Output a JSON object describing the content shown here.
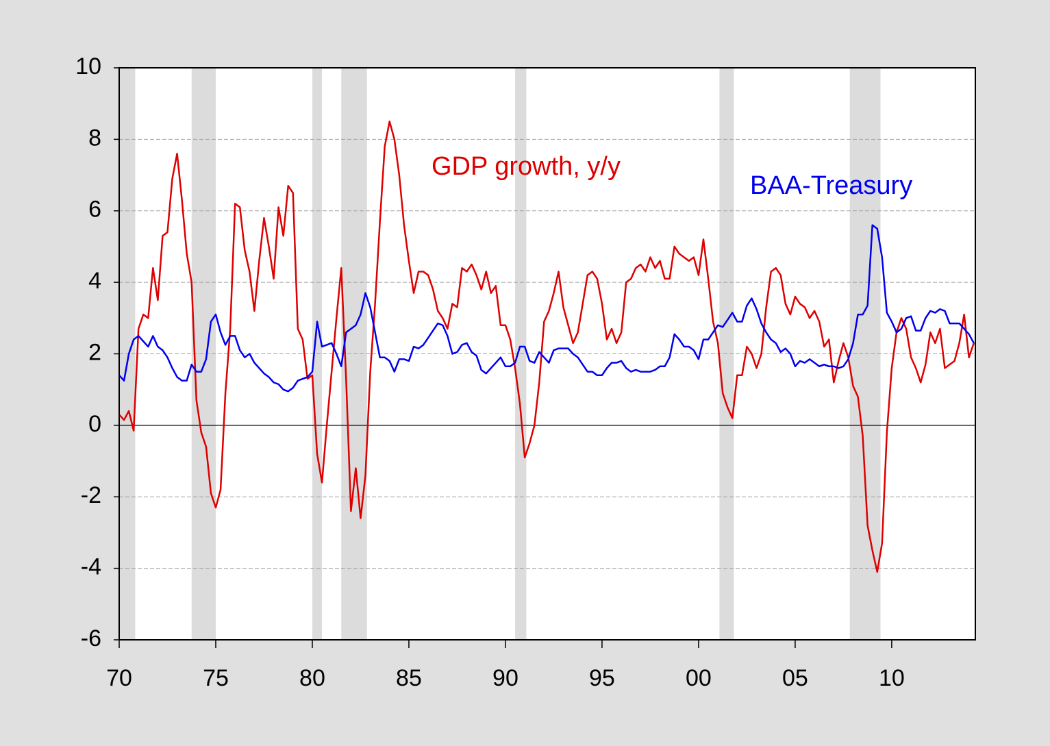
{
  "chart_data": {
    "type": "line",
    "annotations": [
      {
        "text": "GDP growth, y/y",
        "color": "#dd0000"
      },
      {
        "text": "BAA-Treasury",
        "color": "#0000ee"
      }
    ],
    "x": [
      1970,
      1970.25,
      1970.5,
      1970.75,
      1971,
      1971.25,
      1971.5,
      1971.75,
      1972,
      1972.25,
      1972.5,
      1972.75,
      1973,
      1973.25,
      1973.5,
      1973.75,
      1974,
      1974.25,
      1974.5,
      1974.75,
      1975,
      1975.25,
      1975.5,
      1975.75,
      1976,
      1976.25,
      1976.5,
      1976.75,
      1977,
      1977.25,
      1977.5,
      1977.75,
      1978,
      1978.25,
      1978.5,
      1978.75,
      1979,
      1979.25,
      1979.5,
      1979.75,
      1980,
      1980.25,
      1980.5,
      1980.75,
      1981,
      1981.25,
      1981.5,
      1981.75,
      1982,
      1982.25,
      1982.5,
      1982.75,
      1983,
      1983.25,
      1983.5,
      1983.75,
      1984,
      1984.25,
      1984.5,
      1984.75,
      1985,
      1985.25,
      1985.5,
      1985.75,
      1986,
      1986.25,
      1986.5,
      1986.75,
      1987,
      1987.25,
      1987.5,
      1987.75,
      1988,
      1988.25,
      1988.5,
      1988.75,
      1989,
      1989.25,
      1989.5,
      1989.75,
      1990,
      1990.25,
      1990.5,
      1990.75,
      1991,
      1991.25,
      1991.5,
      1991.75,
      1992,
      1992.25,
      1992.5,
      1992.75,
      1993,
      1993.25,
      1993.5,
      1993.75,
      1994,
      1994.25,
      1994.5,
      1994.75,
      1995,
      1995.25,
      1995.5,
      1995.75,
      1996,
      1996.25,
      1996.5,
      1996.75,
      1997,
      1997.25,
      1997.5,
      1997.75,
      1998,
      1998.25,
      1998.5,
      1998.75,
      1999,
      1999.25,
      1999.5,
      1999.75,
      2000,
      2000.25,
      2000.5,
      2000.75,
      2001,
      2001.25,
      2001.5,
      2001.75,
      2002,
      2002.25,
      2002.5,
      2002.75,
      2003,
      2003.25,
      2003.5,
      2003.75,
      2004,
      2004.25,
      2004.5,
      2004.75,
      2005,
      2005.25,
      2005.5,
      2005.75,
      2006,
      2006.25,
      2006.5,
      2006.75,
      2007,
      2007.25,
      2007.5,
      2007.75,
      2008,
      2008.25,
      2008.5,
      2008.75,
      2009,
      2009.25,
      2009.5,
      2009.75,
      2010,
      2010.25,
      2010.5,
      2010.75,
      2011,
      2011.25,
      2011.5,
      2011.75,
      2012,
      2012.25,
      2012.5,
      2012.75,
      2013,
      2013.25,
      2013.5,
      2013.75,
      2014,
      2014.25
    ],
    "series": [
      {
        "name": "GDP growth, y/y",
        "color": "#dd0000",
        "values": [
          0.3,
          0.15,
          0.4,
          -0.15,
          2.7,
          3.1,
          3.0,
          4.4,
          3.5,
          5.3,
          5.4,
          6.9,
          7.6,
          6.3,
          4.8,
          4.0,
          0.7,
          -0.2,
          -0.6,
          -1.9,
          -2.3,
          -1.8,
          0.9,
          2.7,
          6.2,
          6.1,
          4.9,
          4.3,
          3.2,
          4.6,
          5.8,
          5.0,
          4.1,
          6.1,
          5.3,
          6.7,
          6.5,
          2.7,
          2.4,
          1.3,
          1.4,
          -0.8,
          -1.6,
          0.0,
          1.5,
          3.0,
          4.4,
          1.3,
          -2.4,
          -1.2,
          -2.6,
          -1.4,
          1.5,
          3.4,
          5.7,
          7.8,
          8.5,
          8.0,
          7.0,
          5.6,
          4.6,
          3.7,
          4.3,
          4.3,
          4.2,
          3.8,
          3.2,
          3.0,
          2.7,
          3.4,
          3.3,
          4.4,
          4.3,
          4.5,
          4.2,
          3.8,
          4.3,
          3.7,
          3.9,
          2.8,
          2.8,
          2.4,
          1.6,
          0.6,
          -0.9,
          -0.5,
          0.0,
          1.2,
          2.9,
          3.2,
          3.7,
          4.3,
          3.3,
          2.8,
          2.3,
          2.6,
          3.4,
          4.2,
          4.3,
          4.1,
          3.4,
          2.4,
          2.7,
          2.3,
          2.6,
          4.0,
          4.1,
          4.4,
          4.5,
          4.3,
          4.7,
          4.4,
          4.6,
          4.1,
          4.1,
          5.0,
          4.8,
          4.7,
          4.6,
          4.7,
          4.2,
          5.2,
          4.1,
          2.9,
          2.3,
          0.9,
          0.5,
          0.2,
          1.4,
          1.4,
          2.2,
          2.0,
          1.6,
          2.0,
          3.3,
          4.3,
          4.4,
          4.2,
          3.4,
          3.1,
          3.6,
          3.4,
          3.3,
          3.0,
          3.2,
          2.9,
          2.2,
          2.4,
          1.2,
          1.8,
          2.3,
          1.9,
          1.1,
          0.8,
          -0.3,
          -2.8,
          -3.5,
          -4.1,
          -3.3,
          -0.2,
          1.6,
          2.6,
          3.0,
          2.7,
          1.9,
          1.6,
          1.2,
          1.7,
          2.6,
          2.3,
          2.7,
          1.6,
          1.7,
          1.8,
          2.3,
          3.1,
          1.9,
          2.3
        ]
      },
      {
        "name": "BAA-Treasury",
        "color": "#0000ee",
        "values": [
          1.4,
          1.25,
          2.0,
          2.4,
          2.5,
          2.35,
          2.2,
          2.5,
          2.2,
          2.1,
          1.9,
          1.6,
          1.35,
          1.25,
          1.25,
          1.7,
          1.5,
          1.5,
          1.85,
          2.9,
          3.1,
          2.6,
          2.25,
          2.5,
          2.5,
          2.1,
          1.9,
          2.0,
          1.75,
          1.6,
          1.45,
          1.35,
          1.2,
          1.15,
          1.0,
          0.95,
          1.05,
          1.25,
          1.3,
          1.35,
          1.5,
          2.9,
          2.2,
          2.25,
          2.3,
          2.0,
          1.65,
          2.6,
          2.7,
          2.8,
          3.1,
          3.7,
          3.3,
          2.6,
          1.9,
          1.9,
          1.8,
          1.5,
          1.85,
          1.85,
          1.8,
          2.2,
          2.15,
          2.25,
          2.45,
          2.65,
          2.85,
          2.8,
          2.5,
          2.0,
          2.05,
          2.25,
          2.3,
          2.05,
          1.95,
          1.55,
          1.45,
          1.6,
          1.75,
          1.9,
          1.65,
          1.65,
          1.75,
          2.2,
          2.2,
          1.8,
          1.75,
          2.05,
          1.9,
          1.75,
          2.1,
          2.15,
          2.15,
          2.15,
          2.0,
          1.9,
          1.7,
          1.5,
          1.5,
          1.4,
          1.4,
          1.6,
          1.75,
          1.75,
          1.8,
          1.6,
          1.5,
          1.55,
          1.5,
          1.5,
          1.5,
          1.55,
          1.65,
          1.65,
          1.9,
          2.55,
          2.4,
          2.2,
          2.2,
          2.1,
          1.85,
          2.4,
          2.4,
          2.6,
          2.8,
          2.75,
          2.95,
          3.15,
          2.9,
          2.9,
          3.35,
          3.55,
          3.25,
          2.85,
          2.6,
          2.4,
          2.3,
          2.05,
          2.15,
          2.0,
          1.65,
          1.8,
          1.75,
          1.85,
          1.75,
          1.65,
          1.7,
          1.65,
          1.65,
          1.6,
          1.65,
          1.85,
          2.3,
          3.1,
          3.1,
          3.35,
          5.6,
          5.5,
          4.7,
          3.15,
          2.9,
          2.6,
          2.7,
          3.0,
          3.05,
          2.65,
          2.65,
          3.0,
          3.2,
          3.15,
          3.25,
          3.2,
          2.85,
          2.85,
          2.85,
          2.7,
          2.55,
          2.3
        ]
      }
    ],
    "recessions": [
      {
        "start": 1969.92,
        "end": 1970.83
      },
      {
        "start": 1973.75,
        "end": 1975.0
      },
      {
        "start": 1980.0,
        "end": 1980.5
      },
      {
        "start": 1981.5,
        "end": 1982.83
      },
      {
        "start": 1990.5,
        "end": 1991.08
      },
      {
        "start": 2001.08,
        "end": 2001.83
      },
      {
        "start": 2007.83,
        "end": 2009.42
      }
    ],
    "recession_color": "#dcdcdc",
    "xlim": [
      1970,
      2014.33
    ],
    "xticks": [
      {
        "value": 1970,
        "label": "70"
      },
      {
        "value": 1975,
        "label": "75"
      },
      {
        "value": 1980,
        "label": "80"
      },
      {
        "value": 1985,
        "label": "85"
      },
      {
        "value": 1990,
        "label": "90"
      },
      {
        "value": 1995,
        "label": "95"
      },
      {
        "value": 2000,
        "label": "00"
      },
      {
        "value": 2005,
        "label": "05"
      },
      {
        "value": 2010,
        "label": "10"
      }
    ],
    "ylim": [
      -6,
      10
    ],
    "yticks": [
      -6,
      -4,
      -2,
      0,
      2,
      4,
      6,
      8,
      10
    ],
    "grid": true
  }
}
